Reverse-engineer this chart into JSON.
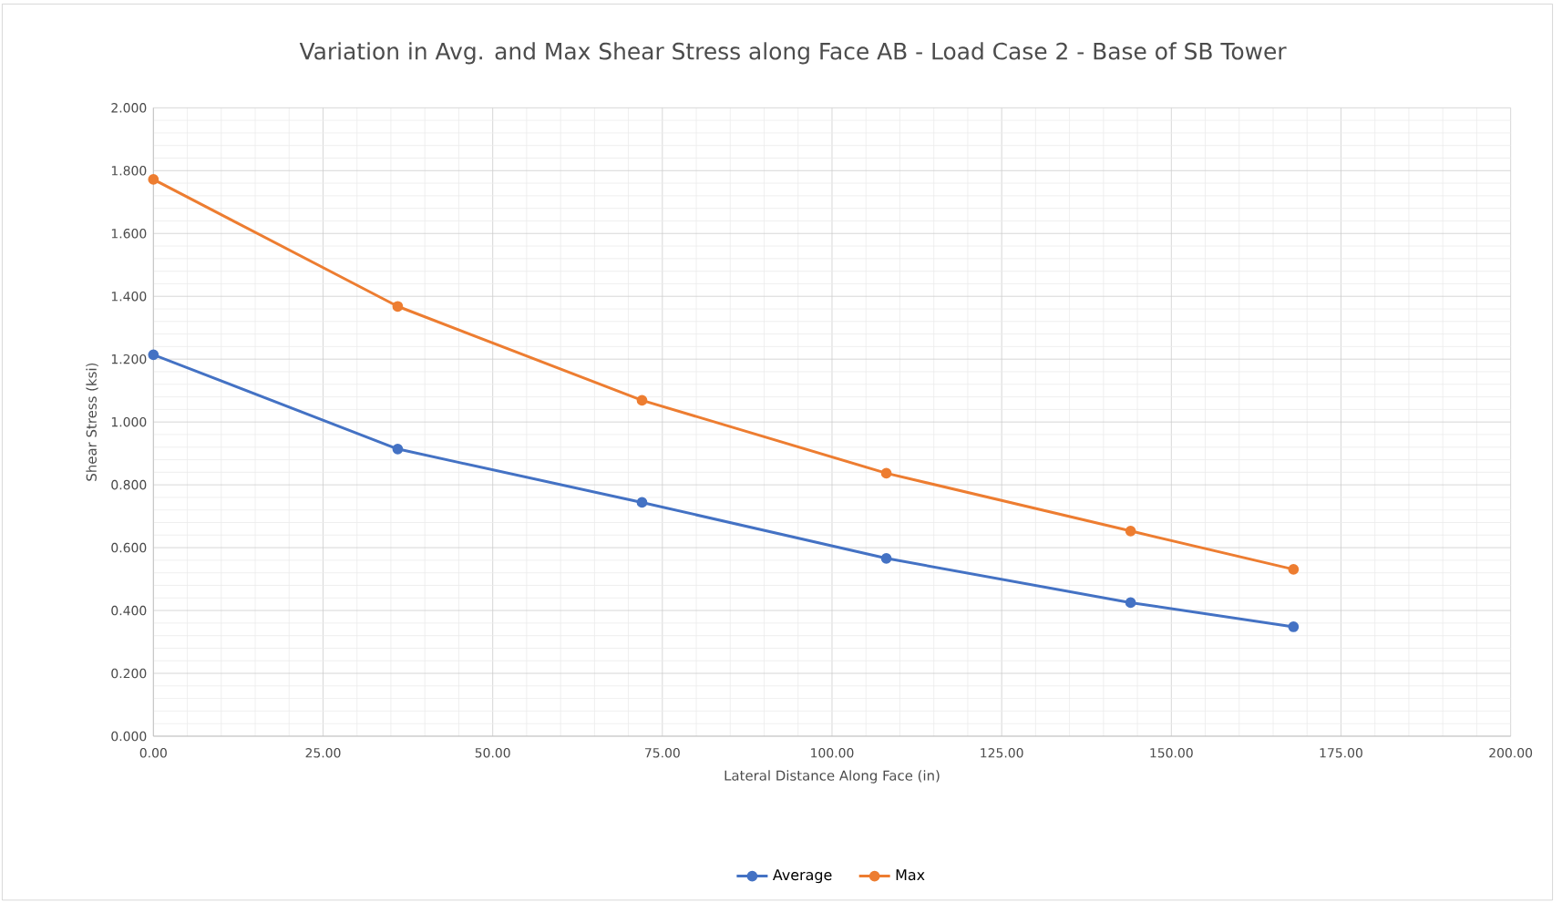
{
  "chart_data": {
    "type": "line",
    "title": "Variation in Avg. and Max Shear Stress along Face AB - Load Case 2 - Base of SB Tower",
    "xlabel": "Lateral Distance Along Face (in)",
    "ylabel": "Shear Stress (ksi)",
    "x": [
      0,
      36,
      72,
      108,
      144,
      168
    ],
    "series": [
      {
        "name": "Average",
        "color": "#4472c4",
        "values": [
          1.214,
          0.914,
          0.744,
          0.566,
          0.425,
          0.348
        ]
      },
      {
        "name": "Max",
        "color": "#ed7d31",
        "values": [
          1.772,
          1.368,
          1.069,
          0.837,
          0.653,
          0.531
        ]
      }
    ],
    "xlim": [
      0,
      200
    ],
    "ylim": [
      0,
      2
    ],
    "xticks": [
      {
        "value": 0,
        "label": "0.00"
      },
      {
        "value": 25,
        "label": "25.00"
      },
      {
        "value": 50,
        "label": "50.00"
      },
      {
        "value": 75,
        "label": "75.00"
      },
      {
        "value": 100,
        "label": "100.00"
      },
      {
        "value": 125,
        "label": "125.00"
      },
      {
        "value": 150,
        "label": "150.00"
      },
      {
        "value": 175,
        "label": "175.00"
      },
      {
        "value": 200,
        "label": "200.00"
      }
    ],
    "yticks": [
      {
        "value": 0,
        "label": "0.000"
      },
      {
        "value": 0.2,
        "label": "0.200"
      },
      {
        "value": 0.4,
        "label": "0.400"
      },
      {
        "value": 0.6,
        "label": "0.600"
      },
      {
        "value": 0.8,
        "label": "0.800"
      },
      {
        "value": 1,
        "label": "1.000"
      },
      {
        "value": 1.2,
        "label": "1.200"
      },
      {
        "value": 1.4,
        "label": "1.400"
      },
      {
        "value": 1.6,
        "label": "1.600"
      },
      {
        "value": 1.8,
        "label": "1.800"
      },
      {
        "value": 2,
        "label": "2.000"
      }
    ],
    "grid": true,
    "legend": "bottom",
    "marker": "circle",
    "line_style": "solid"
  }
}
